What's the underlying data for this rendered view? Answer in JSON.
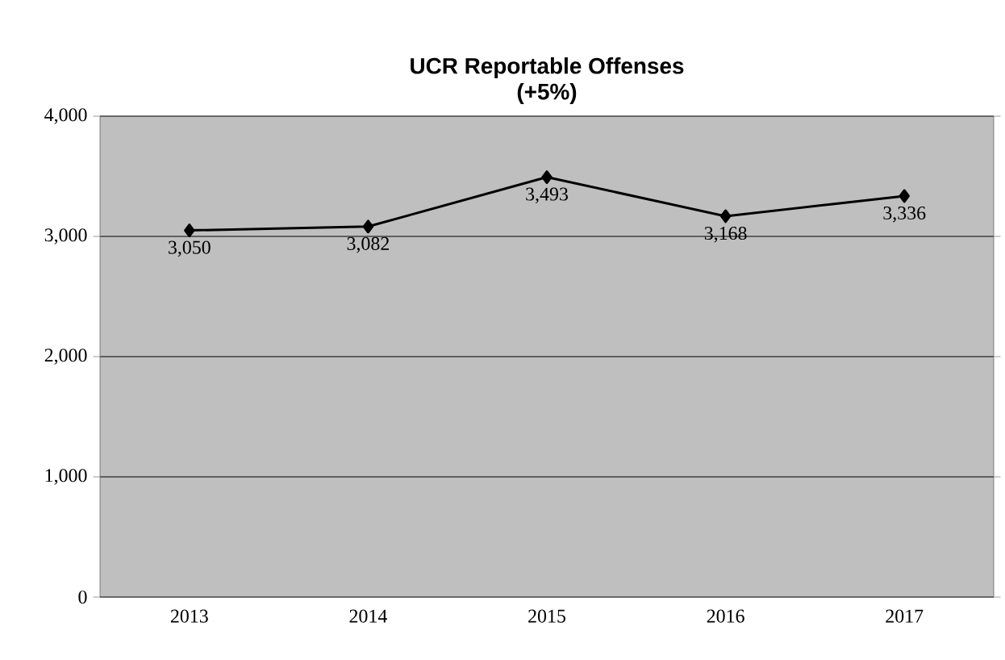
{
  "chart_data": {
    "type": "line",
    "title": "UCR Reportable Offenses",
    "subtitle": "(+5%)",
    "categories": [
      "2013",
      "2014",
      "2015",
      "2016",
      "2017"
    ],
    "values": [
      3050,
      3082,
      3493,
      3168,
      3336
    ],
    "value_labels": [
      "3,050",
      "3,082",
      "3,493",
      "3,168",
      "3,336"
    ],
    "color": "#000000",
    "marker": "diamond",
    "line_style": "solid",
    "ylim": [
      0,
      4000
    ],
    "yticks": [
      {
        "value": 0,
        "label": "0"
      },
      {
        "value": 1000,
        "label": "1,000"
      },
      {
        "value": 2000,
        "label": "2,000"
      },
      {
        "value": 3000,
        "label": "3,000"
      },
      {
        "value": 4000,
        "label": "4,000"
      }
    ],
    "grid": "y"
  }
}
